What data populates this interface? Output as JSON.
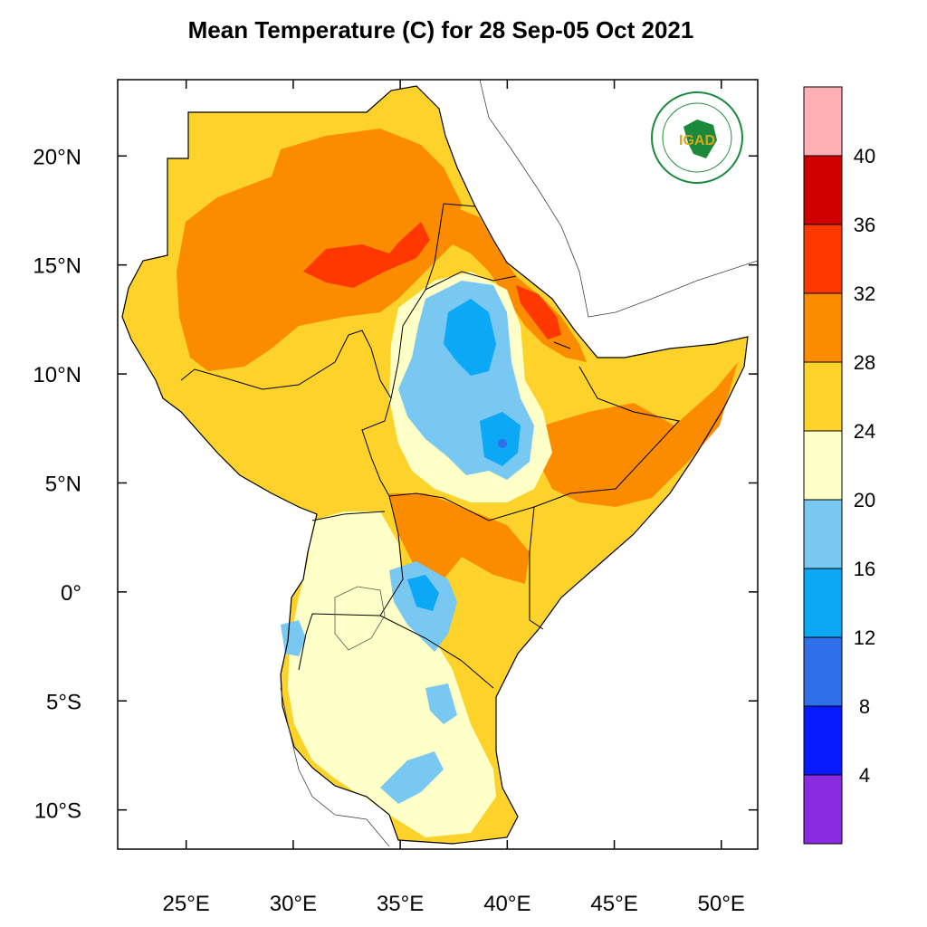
{
  "title": "Mean Temperature (C) for 28 Sep-05 Oct 2021",
  "map": {
    "lon_range": [
      21.8,
      51.7
    ],
    "lat_range": [
      -11.8,
      23.5
    ],
    "lon_ticks": [
      {
        "value": 25,
        "label": "25°E"
      },
      {
        "value": 30,
        "label": "30°E"
      },
      {
        "value": 35,
        "label": "35°E"
      },
      {
        "value": 40,
        "label": "40°E"
      },
      {
        "value": 45,
        "label": "45°E"
      },
      {
        "value": 50,
        "label": "50°E"
      }
    ],
    "lat_ticks": [
      {
        "value": 20,
        "label": "20°N"
      },
      {
        "value": 15,
        "label": "15°N"
      },
      {
        "value": 10,
        "label": "10°N"
      },
      {
        "value": 5,
        "label": "5°N"
      },
      {
        "value": 0,
        "label": "0°"
      },
      {
        "value": -5,
        "label": "5°S"
      },
      {
        "value": -10,
        "label": "10°S"
      }
    ],
    "logo_text": "IGAD"
  },
  "colorbar": {
    "bins": [
      {
        "color": "#8a2be2"
      },
      {
        "color": "#0a1aff"
      },
      {
        "color": "#2f6fe8"
      },
      {
        "color": "#0aa8f5"
      },
      {
        "color": "#78c8f2"
      },
      {
        "color": "#ffffc8"
      },
      {
        "color": "#fdd22a"
      },
      {
        "color": "#fb8c00"
      },
      {
        "color": "#ff3700"
      },
      {
        "color": "#d00000"
      },
      {
        "color": "#ffb0b5"
      }
    ],
    "labels": [
      "4",
      "8",
      "12",
      "16",
      "20",
      "24",
      "28",
      "32",
      "36",
      "40"
    ]
  }
}
